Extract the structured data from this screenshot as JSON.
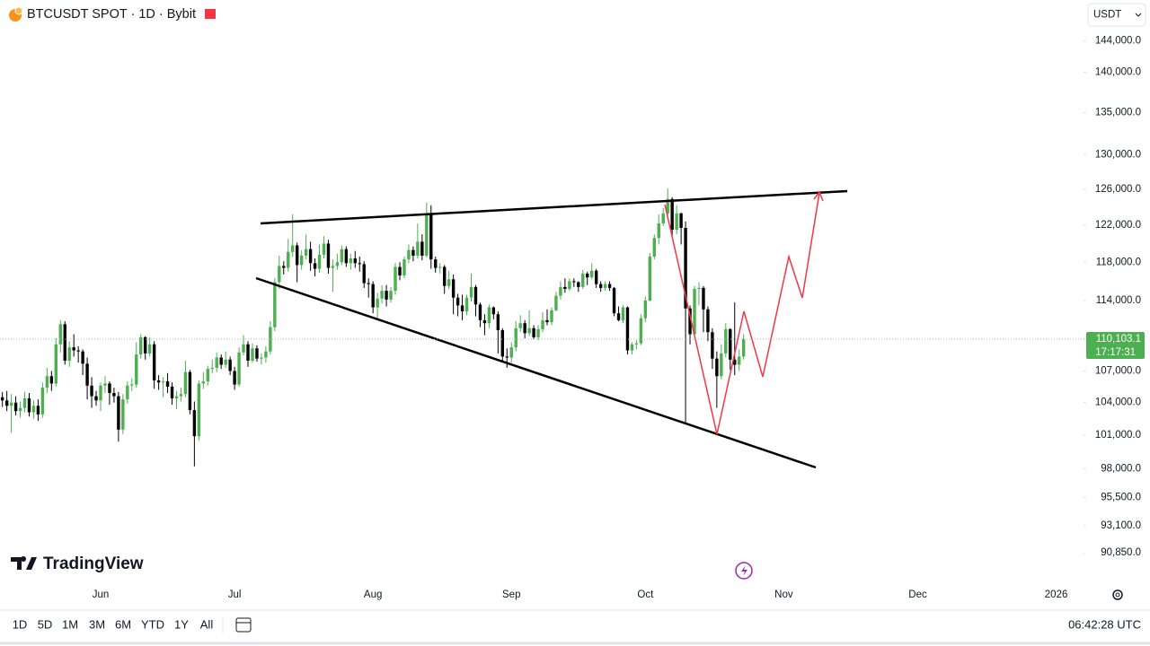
{
  "header": {
    "symbol": "BTCUSDT SPOT · 1D · Bybit",
    "currency": "USDT"
  },
  "chart_data": {
    "type": "candlestick",
    "log": true,
    "ylim": [
      88400,
      149400
    ],
    "yticks": [
      {
        "value": 144000,
        "label": "144,000.0"
      },
      {
        "value": 140000,
        "label": "140,000.0"
      },
      {
        "value": 135000,
        "label": "135,000.0"
      },
      {
        "value": 130000,
        "label": "130,000.0"
      },
      {
        "value": 126000,
        "label": "126,000.0"
      },
      {
        "value": 122000,
        "label": "122,000.0"
      },
      {
        "value": 118000,
        "label": "118,000.0"
      },
      {
        "value": 114000,
        "label": "114,000.0"
      },
      {
        "value": 107000,
        "label": "107,000.0"
      },
      {
        "value": 104000,
        "label": "104,000.0"
      },
      {
        "value": 101000,
        "label": "101,000.0"
      },
      {
        "value": 98000,
        "label": "98,000.0"
      },
      {
        "value": 95500,
        "label": "95,500.0"
      },
      {
        "value": 93100,
        "label": "93,100.0"
      },
      {
        "value": 90850,
        "label": "90,850.0"
      }
    ],
    "up_color": "#4caf50",
    "down_color": "#000000",
    "last_price": {
      "value": 110103.1,
      "label": "110,103.1"
    },
    "countdown": "17:17:31",
    "categories": [
      null,
      null,
      null,
      null,
      null,
      null,
      null,
      null,
      null,
      null,
      null,
      null,
      null,
      null,
      null,
      null,
      null,
      null,
      null,
      null,
      null,
      null,
      "Jun",
      null,
      null,
      null,
      null,
      null,
      null,
      null,
      null,
      null,
      null,
      null,
      null,
      null,
      null,
      null,
      null,
      null,
      null,
      null,
      null,
      null,
      null,
      null,
      null,
      null,
      null,
      null,
      null,
      null,
      "Jul",
      null,
      null,
      null,
      null,
      null,
      null,
      null,
      null,
      null,
      null,
      null,
      null,
      null,
      null,
      null,
      null,
      null,
      null,
      null,
      null,
      null,
      null,
      null,
      null,
      null,
      null,
      null,
      null,
      null,
      null,
      "Aug",
      null,
      null,
      null,
      null,
      null,
      null,
      null,
      null,
      null,
      null,
      null,
      null,
      null,
      null,
      null,
      null,
      null,
      null,
      null,
      null,
      null,
      null,
      null,
      null,
      null,
      null,
      null,
      null,
      null,
      null,
      "Sep",
      null,
      null,
      null,
      null,
      null,
      null,
      null,
      null,
      null,
      null,
      null,
      null,
      null,
      null,
      null,
      null,
      null,
      null,
      null,
      null,
      null,
      null,
      null,
      null,
      null,
      null,
      null,
      null,
      null,
      "Oct",
      null,
      null,
      null,
      null,
      null,
      null,
      null,
      null,
      null,
      null,
      null,
      null,
      null,
      null,
      null,
      null,
      null,
      null,
      null,
      null,
      null,
      null,
      null,
      null,
      null,
      null,
      null,
      null,
      null,
      null,
      "Nov",
      null,
      null,
      null,
      null,
      null,
      null,
      null,
      null,
      null,
      null,
      null,
      null,
      null,
      null,
      null,
      null,
      null,
      null,
      null,
      null,
      null,
      null,
      null,
      null,
      null,
      null,
      null,
      null,
      null,
      "Dec",
      null,
      null,
      null,
      null,
      null,
      null,
      null,
      null,
      null,
      null,
      null,
      null,
      null,
      null,
      null,
      null,
      null,
      null,
      null,
      null,
      null,
      null,
      null,
      null,
      null,
      null,
      null,
      null,
      null,
      null,
      "2026"
    ],
    "candles": [
      [
        104500,
        105000,
        103600,
        104200
      ],
      [
        104200,
        105100,
        103200,
        103700
      ],
      [
        103700,
        104800,
        101200,
        104000
      ],
      [
        104000,
        104600,
        102800,
        103200
      ],
      [
        103200,
        104100,
        102600,
        103500
      ],
      [
        103500,
        105000,
        103100,
        104400
      ],
      [
        104400,
        104900,
        102700,
        103100
      ],
      [
        103100,
        104200,
        102500,
        103700
      ],
      [
        103700,
        104300,
        102300,
        102900
      ],
      [
        102900,
        105900,
        102600,
        105400
      ],
      [
        105400,
        107300,
        104900,
        106500
      ],
      [
        106500,
        107000,
        105100,
        105800
      ],
      [
        105800,
        110200,
        105500,
        109600
      ],
      [
        109600,
        112000,
        108800,
        111600
      ],
      [
        111600,
        111900,
        107600,
        108000
      ],
      [
        108000,
        109900,
        107400,
        109300
      ],
      [
        109300,
        110600,
        108400,
        109000
      ],
      [
        109000,
        109400,
        107800,
        108900
      ],
      [
        108900,
        109100,
        106600,
        107700
      ],
      [
        107700,
        108300,
        104300,
        105600
      ],
      [
        105600,
        106400,
        103500,
        104600
      ],
      [
        104600,
        105100,
        103700,
        104200
      ],
      [
        104200,
        105900,
        103200,
        105600
      ],
      [
        105600,
        106500,
        104900,
        105800
      ],
      [
        105800,
        106000,
        103800,
        104900
      ],
      [
        104900,
        105400,
        104000,
        104600
      ],
      [
        104600,
        105000,
        100400,
        101500
      ],
      [
        101500,
        104800,
        101100,
        104300
      ],
      [
        104300,
        106000,
        103900,
        105600
      ],
      [
        105600,
        106300,
        105100,
        105700
      ],
      [
        105700,
        109800,
        105400,
        108600
      ],
      [
        108600,
        110600,
        108200,
        110300
      ],
      [
        110300,
        110400,
        108100,
        108700
      ],
      [
        108700,
        110300,
        108400,
        109600
      ],
      [
        109600,
        109900,
        105300,
        106100
      ],
      [
        106100,
        106600,
        105200,
        105900
      ],
      [
        105900,
        106400,
        104500,
        106000
      ],
      [
        106000,
        106800,
        104900,
        105500
      ],
      [
        105500,
        105900,
        103800,
        104400
      ],
      [
        104400,
        105100,
        103400,
        104600
      ],
      [
        104600,
        105400,
        104100,
        104800
      ],
      [
        104800,
        108000,
        104500,
        106900
      ],
      [
        106900,
        107100,
        102900,
        103300
      ],
      [
        103300,
        104100,
        98200,
        100900
      ],
      [
        100900,
        106100,
        100500,
        105800
      ],
      [
        105800,
        106900,
        105300,
        106000
      ],
      [
        106000,
        107500,
        105600,
        107200
      ],
      [
        107200,
        108100,
        106800,
        107300
      ],
      [
        107300,
        108800,
        106900,
        108300
      ],
      [
        108300,
        108600,
        107200,
        107600
      ],
      [
        107600,
        108900,
        107300,
        108100
      ],
      [
        108100,
        108400,
        106600,
        107000
      ],
      [
        107000,
        107400,
        105200,
        105700
      ],
      [
        105700,
        109300,
        105500,
        108800
      ],
      [
        108800,
        110500,
        108500,
        109600
      ],
      [
        109600,
        109900,
        107400,
        108000
      ],
      [
        108000,
        109700,
        107800,
        109200
      ],
      [
        109200,
        109500,
        107900,
        108200
      ],
      [
        108200,
        108700,
        107600,
        108300
      ],
      [
        108300,
        109400,
        107800,
        108900
      ],
      [
        108900,
        111900,
        108600,
        111300
      ],
      [
        111300,
        116300,
        110900,
        115900
      ],
      [
        115900,
        118700,
        115200,
        117600
      ],
      [
        117600,
        118100,
        116700,
        117400
      ],
      [
        117400,
        120500,
        117000,
        119100
      ],
      [
        119100,
        123200,
        118600,
        119800
      ],
      [
        119800,
        120100,
        115900,
        117700
      ],
      [
        117700,
        119300,
        117200,
        118700
      ],
      [
        118700,
        121000,
        118300,
        119400
      ],
      [
        119400,
        120200,
        117100,
        117900
      ],
      [
        117900,
        118400,
        116500,
        117300
      ],
      [
        117300,
        119900,
        116900,
        118800
      ],
      [
        118800,
        120800,
        118400,
        120000
      ],
      [
        120000,
        120400,
        116800,
        117400
      ],
      [
        117400,
        118300,
        114900,
        117600
      ],
      [
        117600,
        118900,
        117200,
        118000
      ],
      [
        118000,
        119800,
        117700,
        119400
      ],
      [
        119400,
        119700,
        117500,
        117900
      ],
      [
        117900,
        118900,
        117200,
        118400
      ],
      [
        118400,
        119200,
        117400,
        117900
      ],
      [
        117900,
        118600,
        117000,
        117800
      ],
      [
        117800,
        118100,
        115300,
        115800
      ],
      [
        115800,
        116300,
        114300,
        115700
      ],
      [
        115700,
        116000,
        112700,
        113300
      ],
      [
        113300,
        114800,
        112100,
        114200
      ],
      [
        114200,
        115600,
        113700,
        115000
      ],
      [
        115000,
        115600,
        113400,
        114100
      ],
      [
        114100,
        115400,
        113800,
        115000
      ],
      [
        115000,
        117900,
        114600,
        117500
      ],
      [
        117500,
        118000,
        116100,
        116600
      ],
      [
        116600,
        118600,
        116300,
        118300
      ],
      [
        118300,
        119900,
        117900,
        119300
      ],
      [
        119300,
        119700,
        118100,
        118700
      ],
      [
        118700,
        122200,
        118400,
        120200
      ],
      [
        120200,
        121000,
        118200,
        118700
      ],
      [
        118700,
        124500,
        118500,
        123300
      ],
      [
        123300,
        124200,
        117300,
        118300
      ],
      [
        118300,
        118600,
        116900,
        117400
      ],
      [
        117400,
        117900,
        116800,
        117500
      ],
      [
        117500,
        117700,
        114700,
        115500
      ],
      [
        115500,
        117100,
        115200,
        116200
      ],
      [
        116200,
        116700,
        112600,
        114300
      ],
      [
        114300,
        114700,
        112400,
        113500
      ],
      [
        113500,
        114600,
        112000,
        112900
      ],
      [
        112900,
        114600,
        112500,
        114300
      ],
      [
        114300,
        116800,
        113900,
        115400
      ],
      [
        115400,
        115600,
        112400,
        113600
      ],
      [
        113600,
        113800,
        111300,
        112000
      ],
      [
        112000,
        112600,
        110500,
        111700
      ],
      [
        111700,
        113600,
        111200,
        113300
      ],
      [
        113300,
        113400,
        112100,
        112600
      ],
      [
        112600,
        112900,
        108700,
        111000
      ],
      [
        111000,
        111200,
        107900,
        108400
      ],
      [
        108400,
        109200,
        107300,
        108300
      ],
      [
        108300,
        109800,
        107800,
        109300
      ],
      [
        109300,
        111900,
        108900,
        111200
      ],
      [
        111200,
        112500,
        110800,
        111700
      ],
      [
        111700,
        112000,
        110200,
        110700
      ],
      [
        110700,
        113000,
        110400,
        111200
      ],
      [
        111200,
        111500,
        110100,
        110300
      ],
      [
        110300,
        111500,
        110000,
        111100
      ],
      [
        111100,
        112800,
        110800,
        112000
      ],
      [
        112000,
        113100,
        111500,
        111800
      ],
      [
        111800,
        113300,
        111500,
        113000
      ],
      [
        113000,
        114900,
        112900,
        114500
      ],
      [
        114500,
        116000,
        114100,
        115400
      ],
      [
        115400,
        116300,
        114800,
        115200
      ],
      [
        115200,
        116300,
        115000,
        116000
      ],
      [
        116000,
        116300,
        115400,
        115900
      ],
      [
        115900,
        116000,
        114900,
        115400
      ],
      [
        115400,
        117200,
        115200,
        116800
      ],
      [
        116800,
        117000,
        115600,
        116400
      ],
      [
        116400,
        117900,
        116200,
        117100
      ],
      [
        117100,
        117300,
        115300,
        115700
      ],
      [
        115700,
        116000,
        114900,
        115300
      ],
      [
        115300,
        116000,
        115000,
        115700
      ],
      [
        115700,
        116000,
        115000,
        115300
      ],
      [
        115300,
        115400,
        112400,
        112700
      ],
      [
        112700,
        113400,
        111900,
        112000
      ],
      [
        112000,
        113500,
        111700,
        113300
      ],
      [
        113300,
        113400,
        108600,
        109000
      ],
      [
        109000,
        109800,
        108600,
        109600
      ],
      [
        109600,
        110000,
        109100,
        109700
      ],
      [
        109700,
        112600,
        109500,
        112200
      ],
      [
        112200,
        114400,
        111800,
        114000
      ],
      [
        114000,
        119000,
        113900,
        118600
      ],
      [
        118600,
        121000,
        118300,
        120600
      ],
      [
        120600,
        123200,
        119900,
        122200
      ],
      [
        122200,
        123900,
        121900,
        123300
      ],
      [
        123300,
        126100,
        122800,
        124900
      ],
      [
        124900,
        125100,
        120800,
        121500
      ],
      [
        121500,
        124200,
        121000,
        123300
      ],
      [
        123300,
        123400,
        119900,
        121700
      ],
      [
        121700,
        122400,
        102000,
        113200
      ],
      [
        113200,
        113500,
        109600,
        110600
      ],
      [
        110600,
        115500,
        110500,
        115200
      ],
      [
        115200,
        115900,
        113500,
        115300
      ],
      [
        115300,
        115500,
        110800,
        113100
      ],
      [
        113100,
        113400,
        109900,
        110800
      ],
      [
        110800,
        111200,
        107200,
        108200
      ],
      [
        108200,
        108900,
        103500,
        106500
      ],
      [
        106500,
        109600,
        106200,
        108700
      ],
      [
        108700,
        111700,
        108300,
        111100
      ],
      [
        111100,
        111200,
        107100,
        108100
      ],
      [
        108100,
        113800,
        106600,
        107600
      ],
      [
        107600,
        109100,
        107000,
        108400
      ],
      [
        108400,
        110600,
        108100,
        110103.1
      ],
      null,
      null,
      null,
      null,
      null,
      null,
      null,
      null,
      null,
      null,
      null,
      null,
      null,
      null,
      null,
      null,
      null,
      null,
      null,
      null,
      null,
      null,
      null,
      null,
      null,
      null,
      null,
      null,
      null,
      null,
      null,
      null,
      null,
      null,
      null,
      null,
      null,
      null,
      null,
      null,
      null,
      null,
      null,
      null,
      null,
      null,
      null,
      null,
      null,
      null,
      null,
      null,
      null,
      null,
      null,
      null,
      null,
      null,
      null,
      null,
      null,
      null,
      null,
      null,
      null,
      null,
      null,
      null,
      null,
      null
    ]
  },
  "footer": {
    "brand": "TradingView",
    "ranges": [
      "1D",
      "5D",
      "1M",
      "3M",
      "6M",
      "YTD",
      "1Y",
      "All"
    ],
    "clock": "06:42:28 UTC"
  }
}
